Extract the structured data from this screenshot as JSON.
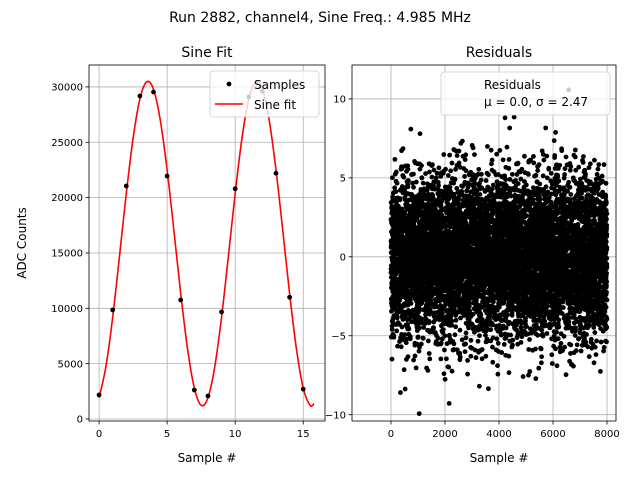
{
  "suptitle": "Run 2882, channel4, Sine Freq.: 4.985 MHz",
  "chart_data": [
    {
      "type": "line",
      "title": "Sine Fit",
      "xlabel": "Sample #",
      "ylabel": "ADC Counts",
      "xlim": [
        -0.74,
        16.6
      ],
      "ylim": [
        -180,
        31980
      ],
      "xticks": [
        0,
        5,
        10,
        15
      ],
      "yticks": [
        0,
        5000,
        10000,
        15000,
        20000,
        25000,
        30000
      ],
      "grid": true,
      "legend": "upper-right",
      "series": [
        {
          "name": "Samples",
          "style": "scatter",
          "color": "#000000",
          "x": [
            0,
            1,
            2,
            3,
            4,
            5,
            6,
            7,
            8,
            9,
            10,
            11,
            12,
            13,
            14,
            15
          ],
          "y": [
            2170,
            9850,
            21050,
            29180,
            29540,
            21950,
            10750,
            2620,
            2080,
            9670,
            20800,
            29100,
            29600,
            22200,
            11000,
            2700
          ]
        },
        {
          "name": "Sine fit",
          "style": "line",
          "color": "#ff0000",
          "x": [
            0,
            0.5,
            1,
            1.5,
            2,
            2.5,
            3,
            3.5,
            4,
            4.5,
            5,
            5.5,
            6,
            6.5,
            7,
            7.5,
            8,
            8.5,
            9,
            9.5,
            10,
            10.5,
            11,
            11.5,
            12,
            12.5,
            13,
            13.5,
            14,
            14.5,
            15,
            15.5,
            15.8
          ],
          "y": [
            1920,
            4720,
            9200,
            14700,
            20380,
            25360,
            28910,
            30460,
            29780,
            26980,
            22500,
            17000,
            11320,
            6340,
            2800,
            1240,
            1920,
            4720,
            9200,
            14700,
            20380,
            25360,
            28910,
            30460,
            29780,
            26980,
            22500,
            17000,
            11320,
            6340,
            2800,
            1240,
            1390
          ]
        }
      ]
    },
    {
      "type": "scatter",
      "title": "Residuals",
      "xlabel": "Sample #",
      "ylabel": "",
      "xlim": [
        -1444,
        8333
      ],
      "ylim": [
        -10.4,
        12.15
      ],
      "xticks": [
        0,
        2000,
        4000,
        6000,
        8000
      ],
      "yticks": [
        -10,
        -5,
        0,
        5,
        10
      ],
      "grid": true,
      "legend": "upper-right",
      "legend_title": "Residuals",
      "legend_stats": "μ = 0.0, σ = 2.47",
      "n_points": 8000,
      "mean": 0.0,
      "std": 2.47,
      "color": "#000000"
    }
  ]
}
